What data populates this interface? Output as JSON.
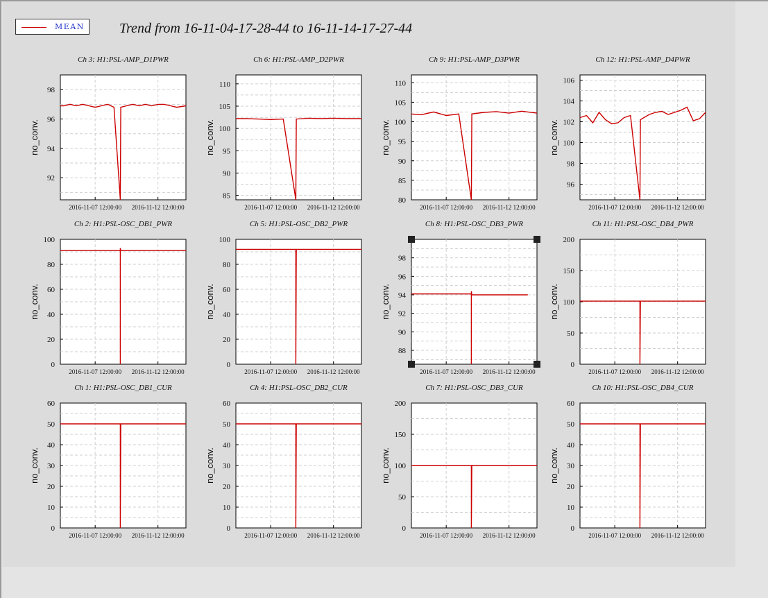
{
  "page": {
    "title": "Trend from 16-11-04-17-28-44 to 16-11-14-17-27-44"
  },
  "legend": {
    "label": "MEAN",
    "color": "#cc0000"
  },
  "x_axis": {
    "start": "2016-11-04 17:28:44",
    "end": "2016-11-14 17:27:44",
    "ticks": [
      "2016-11-07 12:00:00",
      "2016-11-12 12:00:00"
    ],
    "tick_labels": [
      "2016-11-07 12:00:00",
      "2016-11-12 12:00:00"
    ]
  },
  "chart_data": [
    {
      "type": "line",
      "title": "Ch 3: H1:PSL-AMP_D1PWR",
      "ylabel": "no_conv.",
      "ylim": [
        90.5,
        99
      ],
      "yticks": [
        92,
        94,
        96,
        98
      ],
      "series": [
        {
          "values": [
            [
              "2016-11-04 17:28:44",
              96.9
            ],
            [
              "2016-11-05 00:00:00",
              96.9
            ],
            [
              "2016-11-05 12:00:00",
              97.0
            ],
            [
              "2016-11-06 00:00:00",
              96.9
            ],
            [
              "2016-11-06 12:00:00",
              97.0
            ],
            [
              "2016-11-07 00:00:00",
              96.9
            ],
            [
              "2016-11-07 12:00:00",
              96.8
            ],
            [
              "2016-11-08 00:00:00",
              96.9
            ],
            [
              "2016-11-08 12:00:00",
              97.0
            ],
            [
              "2016-11-09 00:00:00",
              96.8
            ],
            [
              "2016-11-09 12:00:00",
              90.5
            ],
            [
              "2016-11-09 13:00:00",
              96.8
            ],
            [
              "2016-11-10 00:00:00",
              96.9
            ],
            [
              "2016-11-10 12:00:00",
              97.0
            ],
            [
              "2016-11-11 00:00:00",
              96.9
            ],
            [
              "2016-11-11 12:00:00",
              97.0
            ],
            [
              "2016-11-12 00:00:00",
              96.9
            ],
            [
              "2016-11-12 12:00:00",
              97.0
            ],
            [
              "2016-11-13 00:00:00",
              97.0
            ],
            [
              "2016-11-13 12:00:00",
              96.9
            ],
            [
              "2016-11-14 00:00:00",
              96.8
            ],
            [
              "2016-11-14 17:27:44",
              96.9
            ]
          ]
        }
      ]
    },
    {
      "type": "line",
      "title": "Ch 6: H1:PSL-AMP_D2PWR",
      "ylabel": "no_conv.",
      "ylim": [
        84,
        112
      ],
      "yticks": [
        85,
        90,
        95,
        100,
        105,
        110
      ],
      "series": [
        {
          "values": [
            [
              "2016-11-04 17:28:44",
              102.2
            ],
            [
              "2016-11-05 12:00:00",
              102.2
            ],
            [
              "2016-11-06 12:00:00",
              102.1
            ],
            [
              "2016-11-07 12:00:00",
              102.0
            ],
            [
              "2016-11-08 12:00:00",
              102.1
            ],
            [
              "2016-11-09 12:00:00",
              84
            ],
            [
              "2016-11-09 13:00:00",
              102.1
            ],
            [
              "2016-11-10 12:00:00",
              102.3
            ],
            [
              "2016-11-11 12:00:00",
              102.2
            ],
            [
              "2016-11-12 12:00:00",
              102.3
            ],
            [
              "2016-11-13 12:00:00",
              102.2
            ],
            [
              "2016-11-14 17:27:44",
              102.2
            ]
          ]
        }
      ]
    },
    {
      "type": "line",
      "title": "Ch 9: H1:PSL-AMP_D3PWR",
      "ylabel": "no_conv.",
      "ylim": [
        80,
        112
      ],
      "yticks": [
        80,
        85,
        90,
        95,
        100,
        105,
        110
      ],
      "series": [
        {
          "values": [
            [
              "2016-11-04 17:28:44",
              102.0
            ],
            [
              "2016-11-05 12:00:00",
              101.8
            ],
            [
              "2016-11-06 12:00:00",
              102.5
            ],
            [
              "2016-11-07 12:00:00",
              101.6
            ],
            [
              "2016-11-08 12:00:00",
              102.0
            ],
            [
              "2016-11-09 12:00:00",
              80
            ],
            [
              "2016-11-09 13:00:00",
              102.0
            ],
            [
              "2016-11-10 12:00:00",
              102.4
            ],
            [
              "2016-11-11 12:00:00",
              102.6
            ],
            [
              "2016-11-12 12:00:00",
              102.2
            ],
            [
              "2016-11-13 12:00:00",
              102.7
            ],
            [
              "2016-11-14 17:27:44",
              102.2
            ]
          ]
        }
      ]
    },
    {
      "type": "line",
      "title": "Ch 12: H1:PSL-AMP_D4PWR",
      "ylabel": "no_conv.",
      "ylim": [
        94.5,
        106.5
      ],
      "yticks": [
        96,
        98,
        100,
        102,
        104,
        106
      ],
      "series": [
        {
          "values": [
            [
              "2016-11-04 17:28:44",
              102.4
            ],
            [
              "2016-11-05 06:00:00",
              102.6
            ],
            [
              "2016-11-05 18:00:00",
              101.9
            ],
            [
              "2016-11-06 06:00:00",
              102.9
            ],
            [
              "2016-11-06 18:00:00",
              102.2
            ],
            [
              "2016-11-07 06:00:00",
              101.8
            ],
            [
              "2016-11-07 18:00:00",
              101.9
            ],
            [
              "2016-11-08 06:00:00",
              102.4
            ],
            [
              "2016-11-08 18:00:00",
              102.6
            ],
            [
              "2016-11-09 12:00:00",
              94.5
            ],
            [
              "2016-11-09 13:00:00",
              102.2
            ],
            [
              "2016-11-10 06:00:00",
              102.7
            ],
            [
              "2016-11-10 18:00:00",
              102.9
            ],
            [
              "2016-11-11 06:00:00",
              103.0
            ],
            [
              "2016-11-11 18:00:00",
              102.7
            ],
            [
              "2016-11-12 06:00:00",
              102.9
            ],
            [
              "2016-11-12 18:00:00",
              103.1
            ],
            [
              "2016-11-13 06:00:00",
              103.4
            ],
            [
              "2016-11-13 18:00:00",
              102.1
            ],
            [
              "2016-11-14 06:00:00",
              102.3
            ],
            [
              "2016-11-14 17:27:44",
              102.9
            ]
          ]
        }
      ]
    },
    {
      "type": "line",
      "title": "Ch 2: H1:PSL-OSC_DB1_PWR",
      "ylabel": "no_conv.",
      "ylim": [
        0,
        100
      ],
      "yticks": [
        0,
        20,
        40,
        60,
        80,
        100
      ],
      "series": [
        {
          "values": [
            [
              "2016-11-04 17:28:44",
              91
            ],
            [
              "2016-11-09 12:00:00",
              91
            ],
            [
              "2016-11-09 12:00:00",
              0
            ],
            [
              "2016-11-09 12:00:00",
              93
            ],
            [
              "2016-11-09 13:00:00",
              91
            ],
            [
              "2016-11-14 17:27:44",
              91
            ]
          ]
        }
      ]
    },
    {
      "type": "line",
      "title": "Ch 5: H1:PSL-OSC_DB2_PWR",
      "ylabel": "no_conv.",
      "ylim": [
        0,
        100
      ],
      "yticks": [
        0,
        20,
        40,
        60,
        80,
        100
      ],
      "series": [
        {
          "values": [
            [
              "2016-11-04 17:28:44",
              92
            ],
            [
              "2016-11-09 12:00:00",
              92
            ],
            [
              "2016-11-09 12:00:00",
              0
            ],
            [
              "2016-11-09 13:00:00",
              92
            ],
            [
              "2016-11-14 17:27:44",
              92
            ]
          ]
        }
      ]
    },
    {
      "type": "line",
      "title": "Ch 8: H1:PSL-OSC_DB3_PWR",
      "ylabel": "no_conv.",
      "ylim": [
        86.5,
        100
      ],
      "yticks": [
        88,
        90,
        92,
        94,
        96,
        98
      ],
      "series": [
        {
          "values": [
            [
              "2016-11-04 17:28:44",
              94.1
            ],
            [
              "2016-11-09 12:00:00",
              94.1
            ],
            [
              "2016-11-09 12:00:00",
              86.5
            ],
            [
              "2016-11-09 12:00:00",
              94.4
            ],
            [
              "2016-11-09 13:00:00",
              94.0
            ],
            [
              "2016-11-14 00:00:00",
              94.0
            ]
          ]
        }
      ]
    },
    {
      "type": "line",
      "title": "Ch 11: H1:PSL-OSC_DB4_PWR",
      "ylabel": "no_conv.",
      "ylim": [
        0,
        200
      ],
      "yticks": [
        0,
        50,
        100,
        150,
        200
      ],
      "series": [
        {
          "values": [
            [
              "2016-11-04 17:28:44",
              101
            ],
            [
              "2016-11-09 12:00:00",
              101
            ],
            [
              "2016-11-09 12:00:00",
              0
            ],
            [
              "2016-11-09 13:00:00",
              101
            ],
            [
              "2016-11-14 17:27:44",
              101
            ]
          ]
        }
      ]
    },
    {
      "type": "line",
      "title": "Ch 1: H1:PSL-OSC_DB1_CUR",
      "ylabel": "no_conv.",
      "ylim": [
        0,
        60
      ],
      "yticks": [
        0,
        10,
        20,
        30,
        40,
        50,
        60
      ],
      "series": [
        {
          "values": [
            [
              "2016-11-04 17:28:44",
              50
            ],
            [
              "2016-11-09 12:00:00",
              50
            ],
            [
              "2016-11-09 12:00:00",
              0
            ],
            [
              "2016-11-09 13:00:00",
              50
            ],
            [
              "2016-11-14 17:27:44",
              50
            ]
          ]
        }
      ]
    },
    {
      "type": "line",
      "title": "Ch 4: H1:PSL-OSC_DB2_CUR",
      "ylabel": "no_conv.",
      "ylim": [
        0,
        60
      ],
      "yticks": [
        0,
        10,
        20,
        30,
        40,
        50,
        60
      ],
      "series": [
        {
          "values": [
            [
              "2016-11-04 17:28:44",
              50
            ],
            [
              "2016-11-09 12:00:00",
              50
            ],
            [
              "2016-11-09 12:00:00",
              0
            ],
            [
              "2016-11-09 13:00:00",
              50
            ],
            [
              "2016-11-14 17:27:44",
              50
            ]
          ]
        }
      ]
    },
    {
      "type": "line",
      "title": "Ch 7: H1:PSL-OSC_DB3_CUR",
      "ylabel": "no_conv.",
      "ylim": [
        0,
        200
      ],
      "yticks": [
        0,
        50,
        100,
        150,
        200
      ],
      "series": [
        {
          "values": [
            [
              "2016-11-04 17:28:44",
              100
            ],
            [
              "2016-11-09 12:00:00",
              100
            ],
            [
              "2016-11-09 12:00:00",
              0
            ],
            [
              "2016-11-09 13:00:00",
              100
            ],
            [
              "2016-11-14 17:27:44",
              100
            ]
          ]
        }
      ]
    },
    {
      "type": "line",
      "title": "Ch 10: H1:PSL-OSC_DB4_CUR",
      "ylabel": "no_conv.",
      "ylim": [
        0,
        60
      ],
      "yticks": [
        0,
        10,
        20,
        30,
        40,
        50,
        60
      ],
      "series": [
        {
          "values": [
            [
              "2016-11-04 17:28:44",
              50
            ],
            [
              "2016-11-09 12:00:00",
              50
            ],
            [
              "2016-11-09 12:00:00",
              0
            ],
            [
              "2016-11-09 13:00:00",
              50
            ],
            [
              "2016-11-14 17:27:44",
              50
            ]
          ]
        }
      ]
    }
  ]
}
